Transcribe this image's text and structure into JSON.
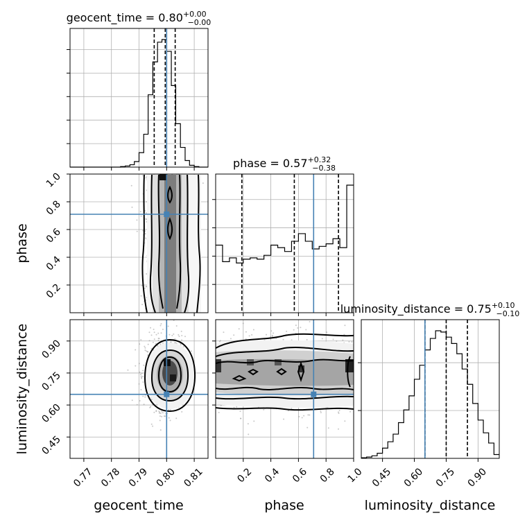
{
  "chart_data": {
    "type": "corner",
    "parameters": [
      "geocent_time",
      "phase",
      "luminosity_distance"
    ],
    "truths": {
      "geocent_time": 0.8,
      "phase": 0.71,
      "luminosity_distance": 0.65
    },
    "ranges": {
      "geocent_time": [
        0.765,
        0.815
      ],
      "phase": [
        0.0,
        1.0
      ],
      "luminosity_distance": [
        0.35,
        1.0
      ]
    },
    "ticks": {
      "geocent_time": [
        "0.77",
        "0.78",
        "0.79",
        "0.80",
        "0.81"
      ],
      "phase": [
        "0.2",
        "0.4",
        "0.6",
        "0.8",
        "1.0"
      ],
      "luminosity_distance": [
        "0.45",
        "0.60",
        "0.75",
        "0.90"
      ]
    },
    "titles": [
      {
        "param": "geocent_time",
        "text": "geocent_time = 0.80",
        "plus": "+0.00",
        "minus": "−0.00"
      },
      {
        "param": "phase",
        "text": "phase = 0.57",
        "plus": "+0.32",
        "minus": "−0.38"
      },
      {
        "param": "luminosity_distance",
        "text": "luminosity_distance = 0.75",
        "plus": "+0.10",
        "minus": "−0.10"
      }
    ],
    "quantiles": {
      "geocent_time": [
        0.7955,
        0.7995,
        0.8031
      ],
      "phase": [
        0.19,
        0.57,
        0.89
      ],
      "luminosity_distance": [
        0.65,
        0.75,
        0.85
      ]
    },
    "histograms": {
      "geocent_time": {
        "edges": [
          0.765,
          0.7667,
          0.7683,
          0.77,
          0.7717,
          0.7733,
          0.775,
          0.7767,
          0.7783,
          0.78,
          0.7817,
          0.7833,
          0.785,
          0.7867,
          0.7883,
          0.79,
          0.7917,
          0.7933,
          0.795,
          0.7967,
          0.7983,
          0.8,
          0.8017,
          0.8033,
          0.805,
          0.8067,
          0.8083,
          0.81,
          0.8117,
          0.8133,
          0.815
        ],
        "counts": [
          0,
          0,
          0,
          0,
          0,
          0,
          0,
          0,
          0,
          0,
          0,
          0.4,
          0.9,
          1.8,
          4.2,
          11,
          25,
          55,
          80,
          95,
          97,
          88,
          62,
          33,
          15,
          5,
          1.4,
          0.4,
          0,
          0
        ]
      },
      "phase": {
        "edges": [
          0,
          0.05,
          0.1,
          0.15,
          0.2,
          0.25,
          0.3,
          0.35,
          0.4,
          0.45,
          0.5,
          0.55,
          0.6,
          0.65,
          0.7,
          0.75,
          0.8,
          0.85,
          0.9,
          0.95,
          1.0
        ],
        "counts": [
          53,
          40,
          43,
          39,
          42,
          43,
          42,
          45,
          53,
          51,
          48,
          56,
          62,
          56,
          50,
          52,
          54,
          58,
          51,
          100
        ]
      },
      "luminosity_distance": {
        "edges": [
          0.35,
          0.375,
          0.4,
          0.425,
          0.45,
          0.475,
          0.5,
          0.525,
          0.55,
          0.575,
          0.6,
          0.625,
          0.65,
          0.675,
          0.7,
          0.725,
          0.75,
          0.775,
          0.8,
          0.825,
          0.85,
          0.875,
          0.9,
          0.925,
          0.95,
          0.975,
          1.0
        ],
        "counts": [
          0.5,
          1,
          2,
          4,
          8,
          13,
          19,
          28,
          38,
          49,
          62,
          73,
          85,
          94,
          100,
          99,
          95,
          90,
          82,
          70,
          58,
          43,
          30,
          20,
          12,
          3
        ]
      }
    },
    "pair_panels": [
      {
        "x": "geocent_time",
        "y": "phase"
      },
      {
        "x": "geocent_time",
        "y": "luminosity_distance"
      },
      {
        "x": "phase",
        "y": "luminosity_distance"
      }
    ],
    "grid": true
  }
}
